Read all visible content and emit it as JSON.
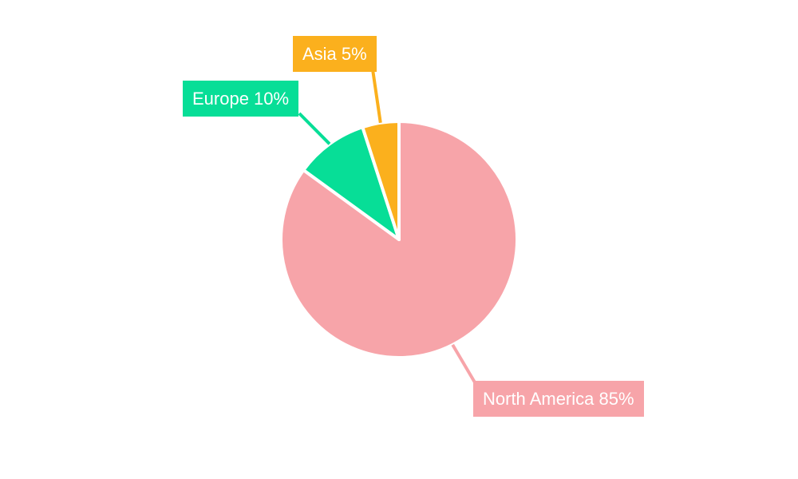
{
  "chart_data": {
    "type": "pie",
    "title": "",
    "units": "%",
    "legend": "none",
    "background_color": "#ffffff",
    "label_text_color": "#ffffff",
    "slice_gap_color": "#ffffff",
    "start_angle": "12 o'clock, clockwise",
    "slices": [
      {
        "label": "North America",
        "value": 85,
        "color": "#F7A4A9"
      },
      {
        "label": "Europe",
        "value": 10,
        "color": "#07DE97"
      },
      {
        "label": "Asia",
        "value": 5,
        "color": "#FBB01D"
      }
    ],
    "callouts": [
      {
        "slice": "Asia",
        "text": "Asia 5%"
      },
      {
        "slice": "Europe",
        "text": "Europe 10%"
      },
      {
        "slice": "North America",
        "text": "North America 85%"
      }
    ]
  }
}
